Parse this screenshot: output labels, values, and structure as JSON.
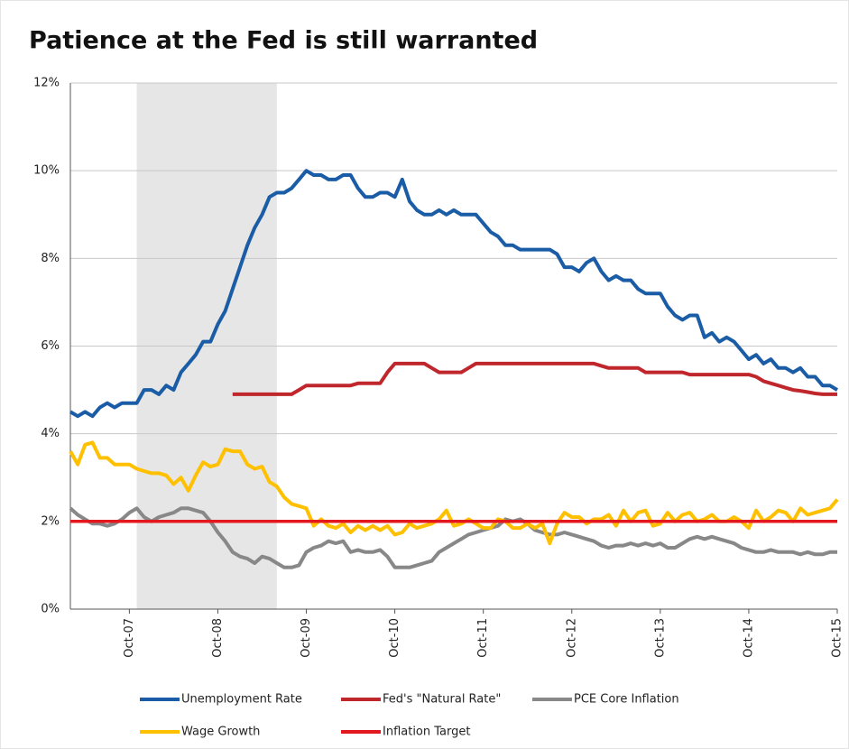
{
  "chart_data": {
    "type": "line",
    "title": "Patience at the Fed is still warranted",
    "categories": [
      null,
      null,
      null,
      null,
      null,
      null,
      null,
      null,
      "Oct-07",
      null,
      null,
      null,
      null,
      null,
      null,
      null,
      null,
      null,
      null,
      null,
      "Oct-08",
      null,
      null,
      null,
      null,
      null,
      null,
      null,
      null,
      null,
      null,
      null,
      "Oct-09",
      null,
      null,
      null,
      null,
      null,
      null,
      null,
      null,
      null,
      null,
      null,
      "Oct-10",
      null,
      null,
      null,
      null,
      null,
      null,
      null,
      null,
      null,
      null,
      null,
      "Oct-11",
      null,
      null,
      null,
      null,
      null,
      null,
      null,
      null,
      null,
      null,
      null,
      "Oct-12",
      null,
      null,
      null,
      null,
      null,
      null,
      null,
      null,
      null,
      null,
      null,
      "Oct-13",
      null,
      null,
      null,
      null,
      null,
      null,
      null,
      null,
      null,
      null,
      null,
      "Oct-14",
      null,
      null,
      null,
      null,
      null,
      null,
      null,
      null,
      null,
      null,
      null,
      "Oct-15"
    ],
    "recession_shading": [
      9,
      28
    ],
    "series": [
      {
        "name": "Unemployment Rate",
        "color": "#1a5da6",
        "values": [
          4.5,
          4.4,
          4.5,
          4.4,
          4.6,
          4.7,
          4.6,
          4.7,
          4.7,
          4.7,
          5.0,
          5.0,
          4.9,
          5.1,
          5.0,
          5.4,
          5.6,
          5.8,
          6.1,
          6.1,
          6.5,
          6.8,
          7.3,
          7.8,
          8.3,
          8.7,
          9.0,
          9.4,
          9.5,
          9.5,
          9.6,
          9.8,
          10.0,
          9.9,
          9.9,
          9.8,
          9.8,
          9.9,
          9.9,
          9.6,
          9.4,
          9.4,
          9.5,
          9.5,
          9.4,
          9.8,
          9.3,
          9.1,
          9.0,
          9.0,
          9.1,
          9.0,
          9.1,
          9.0,
          9.0,
          9.0,
          8.8,
          8.6,
          8.5,
          8.3,
          8.3,
          8.2,
          8.2,
          8.2,
          8.2,
          8.2,
          8.1,
          7.8,
          7.8,
          7.7,
          7.9,
          8.0,
          7.7,
          7.5,
          7.6,
          7.5,
          7.5,
          7.3,
          7.2,
          7.2,
          7.2,
          6.9,
          6.7,
          6.6,
          6.7,
          6.7,
          6.2,
          6.3,
          6.1,
          6.2,
          6.1,
          5.9,
          5.7,
          5.8,
          5.6,
          5.7,
          5.5,
          5.5,
          5.4,
          5.5,
          5.3,
          5.3,
          5.1,
          5.1,
          5.0
        ]
      },
      {
        "name": "Fed's \"Natural Rate\"",
        "color": "#c0272d",
        "values": [
          null,
          null,
          null,
          null,
          null,
          null,
          null,
          null,
          null,
          null,
          null,
          null,
          null,
          null,
          null,
          null,
          null,
          null,
          null,
          null,
          null,
          null,
          4.9,
          4.9,
          4.9,
          4.9,
          4.9,
          4.9,
          4.9,
          4.9,
          4.9,
          5.0,
          5.1,
          5.1,
          5.1,
          5.1,
          5.1,
          5.1,
          5.1,
          5.15,
          5.15,
          5.15,
          5.15,
          5.4,
          5.6,
          5.6,
          5.6,
          5.6,
          5.6,
          5.5,
          5.4,
          5.4,
          5.4,
          5.4,
          5.5,
          5.6,
          5.6,
          5.6,
          5.6,
          5.6,
          5.6,
          5.6,
          5.6,
          5.6,
          5.6,
          5.6,
          5.6,
          5.6,
          5.6,
          5.6,
          5.6,
          5.6,
          5.55,
          5.5,
          5.5,
          5.5,
          5.5,
          5.5,
          5.4,
          5.4,
          5.4,
          5.4,
          5.4,
          5.4,
          5.35,
          5.35,
          5.35,
          5.35,
          5.35,
          5.35,
          5.35,
          5.35,
          5.35,
          5.3,
          5.2,
          5.15,
          5.1,
          5.05,
          5.0,
          4.98,
          4.95,
          4.92,
          4.9,
          4.9,
          4.9
        ]
      },
      {
        "name": "PCE Core Inflation",
        "color": "#888888",
        "values": [
          2.3,
          2.15,
          2.05,
          1.95,
          1.95,
          1.9,
          1.95,
          2.05,
          2.2,
          2.3,
          2.1,
          2.0,
          2.1,
          2.15,
          2.2,
          2.3,
          2.3,
          2.25,
          2.2,
          2.0,
          1.75,
          1.55,
          1.3,
          1.2,
          1.15,
          1.05,
          1.2,
          1.15,
          1.05,
          0.95,
          0.95,
          1.0,
          1.3,
          1.4,
          1.45,
          1.55,
          1.5,
          1.55,
          1.3,
          1.35,
          1.3,
          1.3,
          1.35,
          1.2,
          0.95,
          0.95,
          0.95,
          1.0,
          1.05,
          1.1,
          1.3,
          1.4,
          1.5,
          1.6,
          1.7,
          1.75,
          1.8,
          1.85,
          1.9,
          2.05,
          2.0,
          2.05,
          1.95,
          1.8,
          1.75,
          1.7,
          1.7,
          1.75,
          1.7,
          1.65,
          1.6,
          1.55,
          1.45,
          1.4,
          1.45,
          1.45,
          1.5,
          1.45,
          1.5,
          1.45,
          1.5,
          1.4,
          1.4,
          1.5,
          1.6,
          1.65,
          1.6,
          1.65,
          1.6,
          1.55,
          1.5,
          1.4,
          1.35,
          1.3,
          1.3,
          1.35,
          1.3,
          1.3,
          1.3,
          1.25,
          1.3,
          1.25,
          1.25,
          1.3,
          1.3
        ]
      },
      {
        "name": "Wage Growth",
        "color": "#ffc000",
        "values": [
          3.6,
          3.3,
          3.75,
          3.8,
          3.45,
          3.45,
          3.3,
          3.3,
          3.3,
          3.2,
          3.15,
          3.1,
          3.1,
          3.05,
          2.85,
          3.0,
          2.7,
          3.05,
          3.35,
          3.25,
          3.3,
          3.65,
          3.6,
          3.6,
          3.3,
          3.2,
          3.25,
          2.9,
          2.8,
          2.55,
          2.4,
          2.35,
          2.3,
          1.9,
          2.05,
          1.9,
          1.85,
          1.95,
          1.75,
          1.9,
          1.8,
          1.9,
          1.8,
          1.9,
          1.7,
          1.75,
          1.95,
          1.85,
          1.9,
          1.95,
          2.05,
          2.25,
          1.9,
          1.95,
          2.05,
          1.95,
          1.85,
          1.85,
          2.05,
          2.0,
          1.85,
          1.85,
          1.95,
          1.85,
          1.95,
          1.5,
          1.95,
          2.2,
          2.1,
          2.1,
          1.95,
          2.05,
          2.05,
          2.15,
          1.9,
          2.25,
          2.0,
          2.2,
          2.25,
          1.9,
          1.95,
          2.2,
          2.0,
          2.15,
          2.2,
          2.0,
          2.05,
          2.15,
          2.0,
          2.0,
          2.1,
          2.0,
          1.85,
          2.25,
          2.0,
          2.1,
          2.25,
          2.2,
          2.0,
          2.3,
          2.15,
          2.2,
          2.25,
          2.3,
          2.5
        ]
      },
      {
        "name": "Inflation Target",
        "color": "#e3181f",
        "values": [
          2,
          2,
          2,
          2,
          2,
          2,
          2,
          2,
          2,
          2,
          2,
          2,
          2,
          2,
          2,
          2,
          2,
          2,
          2,
          2,
          2,
          2,
          2,
          2,
          2,
          2,
          2,
          2,
          2,
          2,
          2,
          2,
          2,
          2,
          2,
          2,
          2,
          2,
          2,
          2,
          2,
          2,
          2,
          2,
          2,
          2,
          2,
          2,
          2,
          2,
          2,
          2,
          2,
          2,
          2,
          2,
          2,
          2,
          2,
          2,
          2,
          2,
          2,
          2,
          2,
          2,
          2,
          2,
          2,
          2,
          2,
          2,
          2,
          2,
          2,
          2,
          2,
          2,
          2,
          2,
          2,
          2,
          2,
          2,
          2,
          2,
          2,
          2,
          2,
          2,
          2,
          2,
          2,
          2,
          2,
          2,
          2,
          2,
          2,
          2,
          2,
          2,
          2,
          2,
          2
        ]
      }
    ],
    "ylim": [
      0,
      12
    ],
    "yticks": [
      {
        "value": 0,
        "label": "0%"
      },
      {
        "value": 2,
        "label": "2%"
      },
      {
        "value": 4,
        "label": "4%"
      },
      {
        "value": 6,
        "label": "6%"
      },
      {
        "value": 8,
        "label": "8%"
      },
      {
        "value": 10,
        "label": "10%"
      },
      {
        "value": 12,
        "label": "12%"
      }
    ],
    "grid": true
  }
}
